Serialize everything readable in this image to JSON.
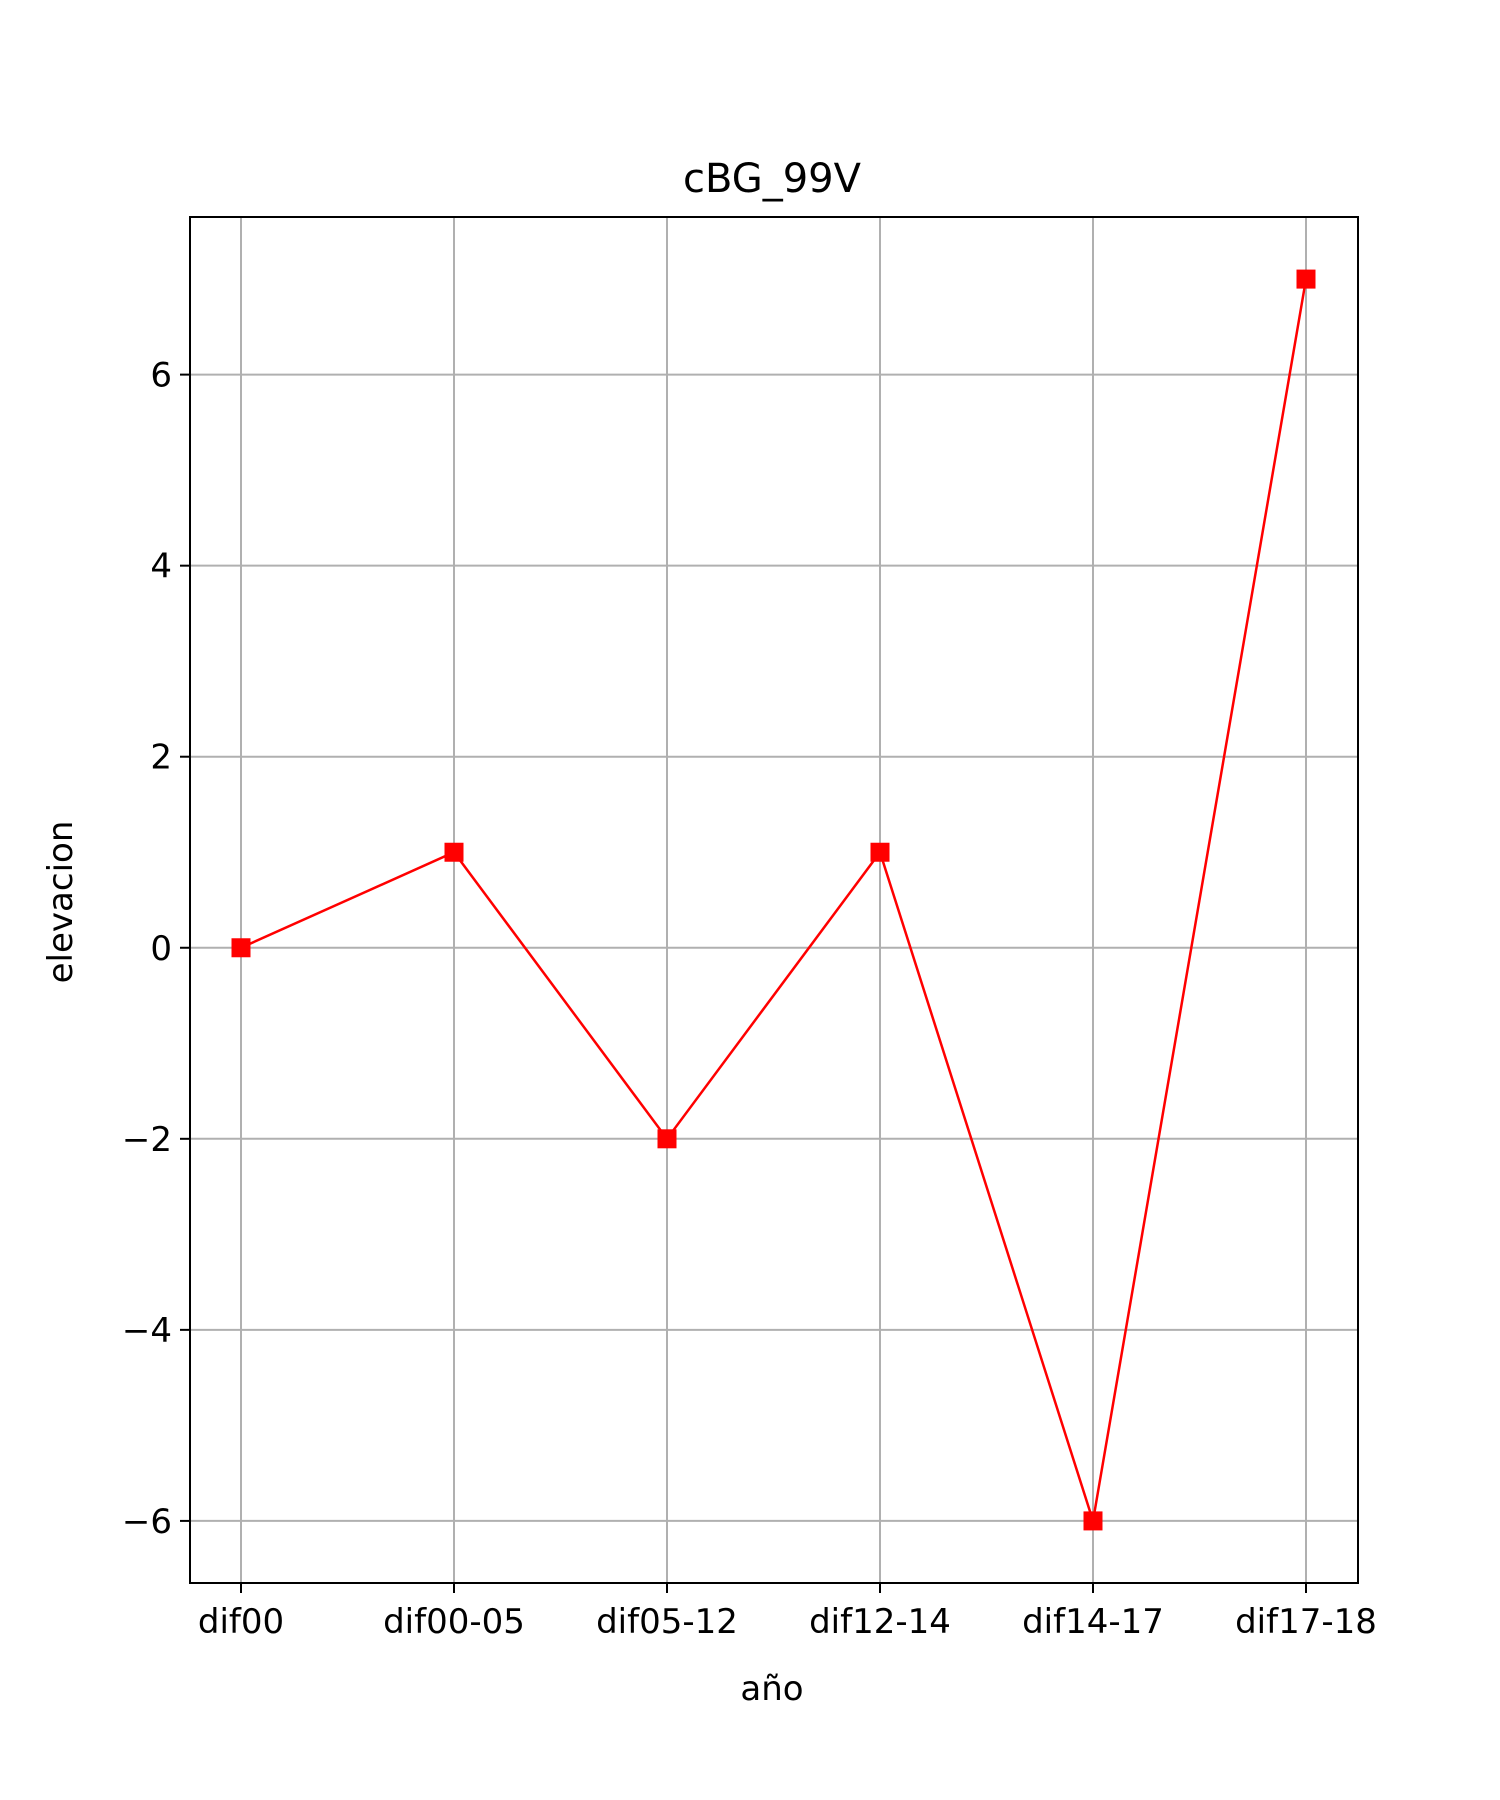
{
  "chart_data": {
    "type": "line",
    "title": "cBG_99V",
    "xlabel": "año",
    "ylabel": "elevacion",
    "categories": [
      "dif00",
      "dif00-05",
      "dif05-12",
      "dif12-14",
      "dif14-17",
      "dif17-18"
    ],
    "series": [
      {
        "values": [
          0,
          1,
          -2,
          1,
          -6,
          7
        ],
        "color": "#ff0000",
        "marker": "square"
      }
    ],
    "ylim": [
      -6.65,
      7.65
    ],
    "yticks": [
      -6,
      -4,
      -2,
      0,
      2,
      4,
      6
    ],
    "ytick_labels": [
      "−6",
      "−4",
      "−2",
      "0",
      "2",
      "4",
      "6"
    ],
    "grid": true,
    "grid_color": "#b0b0b0",
    "axis_color": "#000000"
  }
}
